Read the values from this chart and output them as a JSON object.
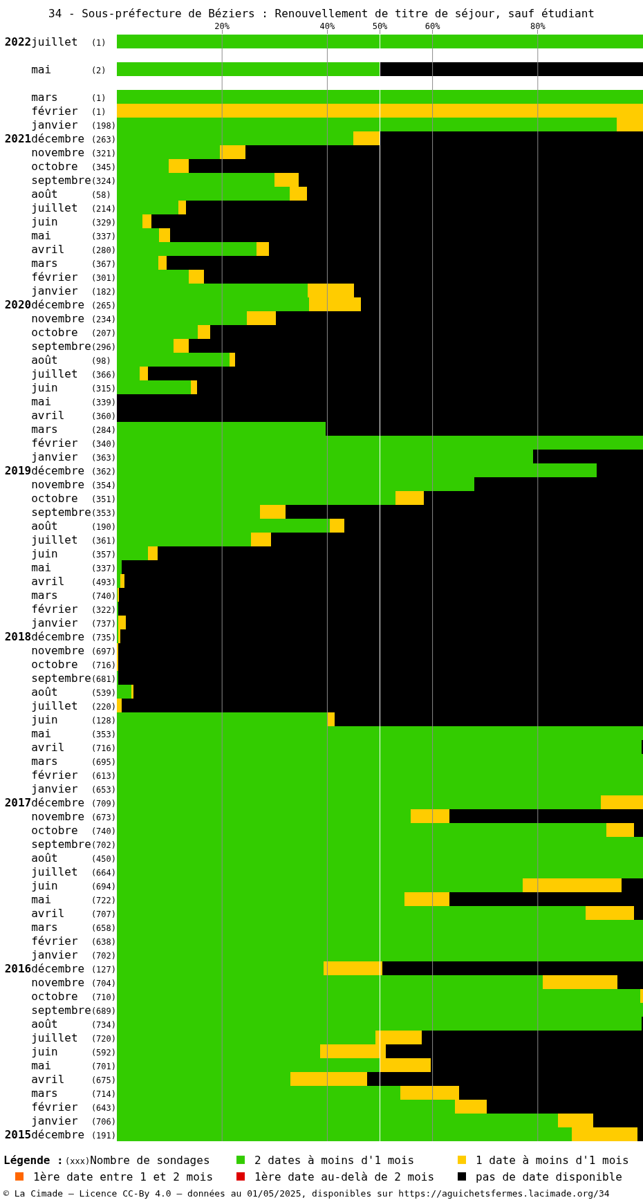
{
  "chart_data": {
    "type": "bar",
    "orientation": "horizontal",
    "stacked": true,
    "title": "34 - Sous-préfecture de Béziers : Renouvellement de titre de séjour, sauf étudiant",
    "categories": [
      "2022juillet (1)",
      null,
      "mai (2)",
      null,
      "mars (1)",
      "février (1)",
      "janvier (198)",
      "2021décembre (263)",
      "novembre (321)",
      "octobre (345)",
      "septembre(324)",
      "août (58)",
      "juillet (214)",
      "juin (329)",
      "mai (337)",
      "avril (280)",
      "mars (367)",
      "février (301)",
      "janvier (182)",
      "2020décembre (265)",
      "novembre (234)",
      "octobre (207)",
      "septembre(296)",
      "août (98)",
      "juillet (366)",
      "juin (315)",
      "mai (339)",
      "avril (360)",
      "mars (284)",
      "février (340)",
      "janvier (363)",
      "2019décembre (362)",
      "novembre (354)",
      "octobre (351)",
      "septembre(353)",
      "août (190)",
      "juillet (361)",
      "juin (357)",
      "mai (337)",
      "avril (493)",
      "mars (740)",
      "février (322)",
      "janvier (737)",
      "2018décembre (735)",
      "novembre (697)",
      "octobre (716)",
      "septembre(681)",
      "août (539)",
      "juillet (220)",
      "juin (128)",
      "mai (353)",
      "avril (716)",
      "mars (695)",
      "février (613)",
      "janvier (653)",
      "2017décembre (709)",
      "novembre (673)",
      "octobre (740)",
      "septembre(702)",
      "août (450)",
      "juillet (664)",
      "juin (694)",
      "mai (722)",
      "avril (707)",
      "mars (658)",
      "février (638)",
      "janvier (702)",
      "2016décembre (127)",
      "novembre (704)",
      "octobre (710)",
      "septembre(689)",
      "août (734)",
      "juillet (720)",
      "juin (592)",
      "mai (701)",
      "avril (675)",
      "mars (714)",
      "février (643)",
      "janvier (706)",
      "2015décembre (191)"
    ],
    "series": [
      {
        "name": "2 dates à moins d'1 mois",
        "color": "#33cc00",
        "values": [
          100,
          null,
          50,
          null,
          100,
          0,
          95,
          45,
          19.6,
          9.8,
          30.0,
          32.8,
          11.7,
          4.8,
          8.0,
          26.5,
          7.9,
          13.7,
          36.3,
          36.5,
          24.7,
          15.4,
          10.8,
          21.4,
          4.3,
          14.0,
          0,
          0,
          39.7,
          100,
          79.1,
          91.2,
          68.0,
          53.0,
          27.2,
          40.5,
          25.5,
          5.9,
          0.9,
          0.6,
          0.1,
          0.3,
          0.2,
          0.3,
          0,
          0,
          0.3,
          2.7,
          0,
          39.9,
          100,
          99.8,
          100,
          100,
          100,
          92.0,
          55.9,
          93.0,
          100,
          100,
          100,
          77.2,
          54.7,
          89.1,
          100,
          100,
          100,
          39.3,
          81.0,
          99.5,
          100,
          99.8,
          49.1,
          38.6,
          50.0,
          33.0,
          53.9,
          64.2,
          83.8,
          86.5
        ]
      },
      {
        "name": "1 date à moins d'1 mois",
        "color": "#ffcc00",
        "values": [
          0,
          null,
          0,
          null,
          0,
          100,
          5,
          5,
          4.9,
          3.9,
          4.6,
          3.4,
          1.4,
          1.8,
          2.1,
          2.4,
          1.5,
          2.9,
          8.8,
          9.9,
          5.5,
          2.3,
          2.9,
          1.1,
          1.6,
          1.2,
          0,
          0,
          0,
          0,
          0,
          0,
          0,
          5.4,
          4.9,
          2.7,
          3.8,
          1.9,
          0,
          0.8,
          0.3,
          0,
          1.5,
          0.3,
          0.2,
          0.2,
          0,
          0.5,
          0.9,
          1.5,
          0,
          0,
          0,
          0,
          0,
          8.0,
          7.3,
          5.3,
          0,
          0,
          0,
          18.7,
          8.5,
          9.2,
          0,
          0,
          0,
          11.1,
          14.1,
          0.5,
          0,
          0,
          8.9,
          12.5,
          9.7,
          14.6,
          11.2,
          6.1,
          6.8,
          12.5
        ]
      },
      {
        "name": "1ère date entre 1 et 2 mois",
        "color": "#ff6600",
        "values": [
          0,
          null,
          0,
          null,
          0,
          0,
          0,
          0,
          0,
          0,
          0,
          0,
          0,
          0,
          0,
          0,
          0,
          0,
          0,
          0,
          0,
          0,
          0,
          0,
          0,
          0,
          0,
          0,
          0,
          0,
          0,
          0,
          0,
          0,
          0,
          0,
          0,
          0,
          0,
          0,
          0,
          0,
          0,
          0,
          0,
          0,
          0,
          0,
          0,
          0,
          0,
          0,
          0,
          0,
          0,
          0,
          0,
          0,
          0,
          0,
          0,
          0,
          0,
          0,
          0,
          0,
          0,
          0,
          0,
          0,
          0,
          0,
          0,
          0,
          0,
          0,
          0,
          0,
          0,
          0
        ]
      },
      {
        "name": "1ère date au-delà de 2 mois",
        "color": "#dd0000",
        "values": [
          0,
          null,
          0,
          null,
          0,
          0,
          0,
          0,
          0,
          0,
          0,
          0,
          0,
          0,
          0,
          0,
          0,
          0,
          0,
          0,
          0,
          0,
          0,
          0,
          0,
          0,
          0,
          0,
          0,
          0,
          0,
          0,
          0,
          0,
          0,
          0,
          0,
          0,
          0,
          0,
          0,
          0,
          0,
          0,
          0,
          0,
          0,
          0,
          0,
          0,
          0,
          0,
          0,
          0,
          0,
          0,
          0,
          0,
          0,
          0,
          0,
          0,
          0,
          0,
          0,
          0,
          0,
          0,
          0,
          0,
          0,
          0,
          0,
          0,
          0,
          0,
          0,
          0,
          0,
          0
        ]
      },
      {
        "name": "pas de date disponible",
        "color": "#000000",
        "values": [
          0,
          null,
          50,
          null,
          0,
          0,
          0,
          50,
          75.5,
          86.3,
          65.4,
          63.8,
          86.9,
          93.4,
          89.9,
          71.1,
          90.6,
          83.4,
          54.9,
          53.6,
          69.8,
          82.3,
          86.3,
          77.5,
          94.1,
          84.8,
          100,
          100,
          60.3,
          0,
          20.9,
          8.8,
          32.0,
          41.6,
          67.9,
          56.8,
          70.7,
          92.2,
          99.1,
          98.6,
          99.6,
          99.7,
          98.3,
          99.4,
          99.8,
          99.8,
          99.7,
          96.8,
          99.1,
          58.6,
          0,
          0.2,
          0,
          0,
          0,
          0,
          36.8,
          1.7,
          0,
          0,
          0,
          4.1,
          36.8,
          1.7,
          0,
          0,
          0,
          49.6,
          4.9,
          0,
          0,
          0.2,
          42.0,
          48.9,
          40.3,
          52.4,
          34.9,
          29.7,
          9.4,
          1.0
        ]
      }
    ],
    "xlim": [
      0,
      100
    ],
    "xticks": [
      {
        "value": 20,
        "label": "20%"
      },
      {
        "value": 40,
        "label": "40%"
      },
      {
        "value": 50,
        "label": "50%"
      },
      {
        "value": 60,
        "label": "60%"
      },
      {
        "value": 80,
        "label": "80%"
      }
    ],
    "grid": "x",
    "ref_lines": [
      {
        "axis": "x",
        "value": 50,
        "color": "#ffffff"
      }
    ],
    "legend": "bottom",
    "legend_title": "Légende :",
    "annotations": [
      "(xxx)Nombre de sondages",
      "© La Cimade — Licence CC-By 4.0 — données au 01/05/2025, disponibles sur https://aguichetsfermes.lacimade.org/34"
    ]
  }
}
